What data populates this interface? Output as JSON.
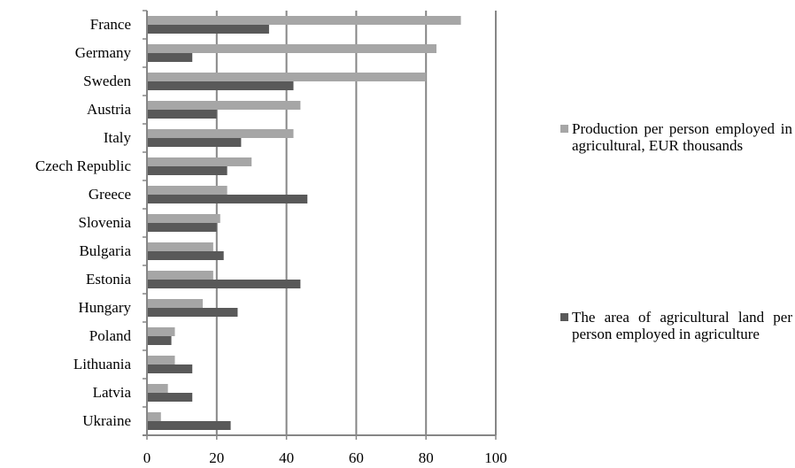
{
  "chart_data": {
    "type": "bar",
    "orientation": "horizontal",
    "categories": [
      "France",
      "Germany",
      "Sweden",
      "Austria",
      "Italy",
      "Czech Republic",
      "Greece",
      "Slovenia",
      "Bulgaria",
      "Estonia",
      "Hungary",
      "Poland",
      "Lithuania",
      "Latvia",
      "Ukraine"
    ],
    "series": [
      {
        "name": "Production per person employed in agricultural, EUR thousands",
        "color": "#a6a6a6",
        "values": [
          90,
          83,
          80,
          44,
          42,
          30,
          23,
          21,
          19,
          19,
          16,
          8,
          8,
          6,
          4
        ]
      },
      {
        "name": "The area of agricultural land per person employed in agriculture",
        "color": "#595959",
        "values": [
          35,
          13,
          42,
          20,
          27,
          23,
          46,
          20,
          22,
          44,
          26,
          7,
          13,
          13,
          24
        ]
      }
    ],
    "xlim": [
      0,
      100
    ],
    "xticks": [
      0,
      20,
      40,
      60,
      80,
      100
    ],
    "grid": true,
    "legend": "right",
    "title": "",
    "xlabel": "",
    "ylabel": ""
  }
}
